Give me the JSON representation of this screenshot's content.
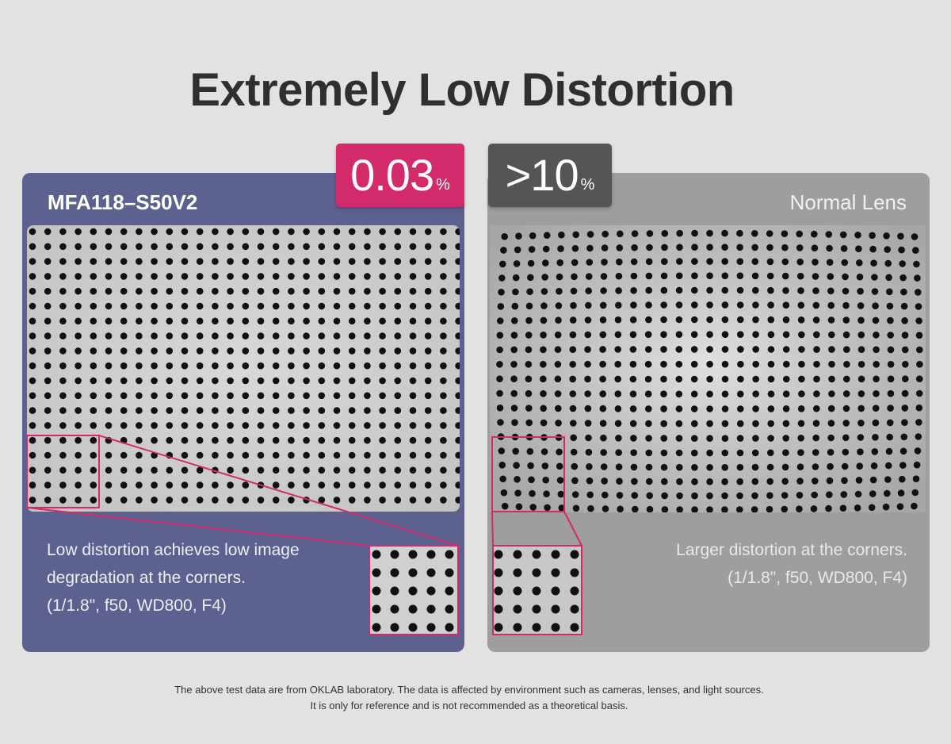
{
  "title": "Extremely Low Distortion",
  "left": {
    "lens_name": "MFA118–S50V2",
    "distortion_value": "0.03",
    "distortion_unit": "%",
    "description": [
      "Low distortion achieves low image",
      "degradation at the corners.",
      "(1/1.8\", f50, WD800, F4)"
    ],
    "panel_color": "#5d6190",
    "badge_color": "#d22a6b"
  },
  "right": {
    "lens_name": "Normal Lens",
    "distortion_value": ">10",
    "distortion_unit": "%",
    "description": [
      "Larger distortion at the corners.",
      "(1/1.8\", f50, WD800, F4)"
    ],
    "panel_color": "#9e9e9e",
    "badge_color": "#555555"
  },
  "highlight_color": "#d22a6b",
  "footnote": [
    "The above test data are from OKLAB laboratory. The data is affected by environment such as cameras, lenses, and light sources.",
    "It is only for reference and is not recommended as a theoretical basis."
  ]
}
